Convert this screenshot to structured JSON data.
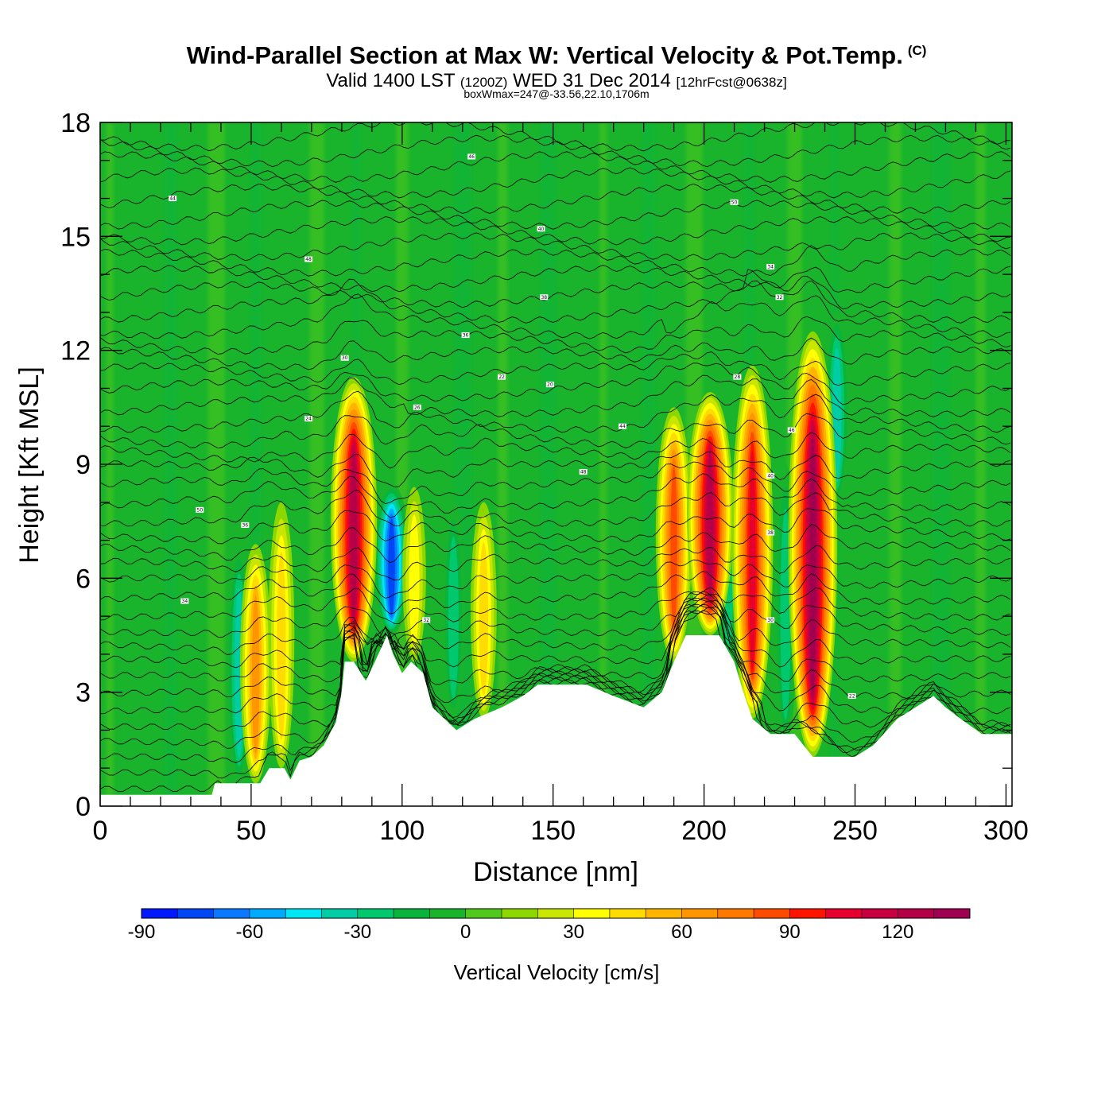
{
  "header": {
    "title": "Wind-Parallel Section at Max W: Vertical Velocity & Pot.Temp.",
    "copyright": "(C)",
    "valid_a": "Valid 1400 LST",
    "valid_b": "(1200Z)",
    "valid_c": "WED 31 Dec 2014",
    "valid_d": "[12hrFcst@0638z]",
    "box_info": "boxWmax=247@-33.56,22.10,1706m"
  },
  "colors": {
    "background_field": "#19b42c",
    "terrain": "#ffffff",
    "contour": "#000000"
  },
  "chart_data": {
    "type": "heatmap",
    "xlabel": "Distance [nm]",
    "ylabel": "Height [Kft MSL]",
    "xlim": [
      0,
      302
    ],
    "ylim": [
      0,
      18
    ],
    "x_ticks": [
      "0",
      "50",
      "100",
      "150",
      "200",
      "250",
      "300"
    ],
    "x_tick_values": [
      0,
      50,
      100,
      150,
      200,
      250,
      300
    ],
    "y_ticks": [
      "0",
      "3",
      "6",
      "9",
      "12",
      "15",
      "18"
    ],
    "y_tick_values": [
      0,
      3,
      6,
      9,
      12,
      15,
      18
    ],
    "grid": false,
    "terrain_height_kft": [
      [
        0,
        0.3
      ],
      [
        37,
        0.3
      ],
      [
        38,
        0.6
      ],
      [
        53,
        0.6
      ],
      [
        56,
        1.0
      ],
      [
        61,
        1.0
      ],
      [
        63,
        0.7
      ],
      [
        66,
        1.2
      ],
      [
        70,
        1.3
      ],
      [
        74,
        1.6
      ],
      [
        78,
        2.2
      ],
      [
        80,
        3.0
      ],
      [
        81,
        3.8
      ],
      [
        84,
        3.8
      ],
      [
        88,
        3.3
      ],
      [
        91,
        3.8
      ],
      [
        95,
        4.5
      ],
      [
        97,
        4.0
      ],
      [
        100,
        3.5
      ],
      [
        103,
        3.8
      ],
      [
        107,
        3.5
      ],
      [
        110,
        2.6
      ],
      [
        114,
        2.3
      ],
      [
        118,
        2.0
      ],
      [
        124,
        2.3
      ],
      [
        133,
        2.6
      ],
      [
        140,
        2.9
      ],
      [
        145,
        3.2
      ],
      [
        161,
        3.2
      ],
      [
        170,
        2.9
      ],
      [
        180,
        2.6
      ],
      [
        186,
        3.0
      ],
      [
        190,
        3.8
      ],
      [
        194,
        4.5
      ],
      [
        205,
        4.5
      ],
      [
        210,
        3.8
      ],
      [
        213,
        3.0
      ],
      [
        216,
        2.3
      ],
      [
        222,
        1.9
      ],
      [
        230,
        1.9
      ],
      [
        233,
        1.6
      ],
      [
        236,
        1.3
      ],
      [
        250,
        1.3
      ],
      [
        256,
        1.6
      ],
      [
        264,
        2.3
      ],
      [
        270,
        2.6
      ],
      [
        276,
        2.9
      ],
      [
        280,
        2.6
      ],
      [
        285,
        2.3
      ],
      [
        292,
        1.9
      ],
      [
        302,
        1.9
      ]
    ],
    "updraft_cores": [
      {
        "x": 51.5,
        "base": 0.6,
        "top": 6.9,
        "peak_cms": 62
      },
      {
        "x": 60,
        "base": 1.0,
        "top": 8.0,
        "peak_cms": 45
      },
      {
        "x": 84,
        "base": 3.8,
        "top": 11.3,
        "peak_cms": 125
      },
      {
        "x": 104,
        "base": 3.8,
        "top": 8.4,
        "peak_cms": 38
      },
      {
        "x": 127,
        "base": 2.3,
        "top": 8.0,
        "peak_cms": 40
      },
      {
        "x": 190,
        "base": 3.8,
        "top": 10.5,
        "peak_cms": 85
      },
      {
        "x": 202,
        "base": 4.5,
        "top": 10.9,
        "peak_cms": 120
      },
      {
        "x": 216,
        "base": 2.3,
        "top": 11.6,
        "peak_cms": 105
      },
      {
        "x": 236,
        "base": 1.3,
        "top": 12.5,
        "peak_cms": 135
      }
    ],
    "downdraft_cores": [
      {
        "x": 46,
        "base": 0.6,
        "top": 6.9,
        "peak_cms": -40
      },
      {
        "x": 96.5,
        "base": 4.5,
        "top": 8.5,
        "peak_cms": -85
      },
      {
        "x": 117,
        "base": 2.3,
        "top": 8.0,
        "peak_cms": -30
      },
      {
        "x": 208,
        "base": 3.8,
        "top": 8.5,
        "peak_cms": -30
      },
      {
        "x": 227,
        "base": 1.6,
        "top": 9.0,
        "peak_cms": -35
      },
      {
        "x": 244,
        "base": 8.0,
        "top": 13.0,
        "peak_cms": -45
      }
    ],
    "colorbar": {
      "label": "Vertical Velocity [cm/s]",
      "min": -90,
      "step": 10,
      "tick_labels": [
        "-90",
        "-60",
        "-30",
        "0",
        "30",
        "60",
        "90",
        "120"
      ],
      "colors": [
        "#0019ff",
        "#0046f5",
        "#0a78ff",
        "#00aaff",
        "#00e6f5",
        "#00cca5",
        "#00c86e",
        "#0ab43c",
        "#19b42c",
        "#50c81e",
        "#8cd700",
        "#c8e600",
        "#ffff00",
        "#ffdc00",
        "#ffb400",
        "#ff9600",
        "#ff7800",
        "#ff4b00",
        "#ff1400",
        "#e6002d",
        "#c80041",
        "#b40046",
        "#a00050"
      ]
    },
    "contour_labels": [
      "44",
      "46",
      "48",
      "40",
      "50",
      "36",
      "38",
      "34",
      "32",
      "30",
      "22",
      "20",
      "28",
      "26",
      "24"
    ]
  }
}
